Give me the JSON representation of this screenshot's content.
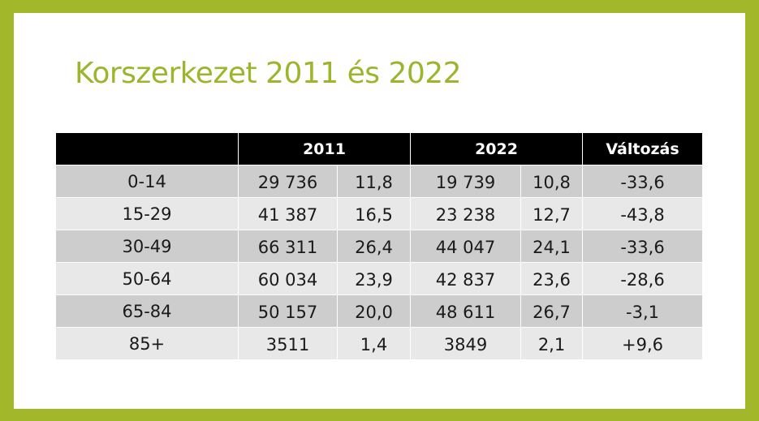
{
  "title": "Korszerkezet 2011 és 2022",
  "table": {
    "headers": [
      "",
      "2011",
      "2022",
      "Változás"
    ],
    "rows": [
      {
        "age": "0-14",
        "n2011": "29 736",
        "p2011": "11,8",
        "n2022": "19 739",
        "p2022": "10,8",
        "change": "-33,6"
      },
      {
        "age": "15-29",
        "n2011": "41 387",
        "p2011": "16,5",
        "n2022": "23 238",
        "p2022": "12,7",
        "change": "-43,8"
      },
      {
        "age": "30-49",
        "n2011": "66 311",
        "p2011": "26,4",
        "n2022": "44 047",
        "p2022": "24,1",
        "change": "-33,6"
      },
      {
        "age": "50-64",
        "n2011": "60 034",
        "p2011": "23,9",
        "n2022": "42 837",
        "p2022": "23,6",
        "change": "-28,6"
      },
      {
        "age": "65-84",
        "n2011": "50 157",
        "p2011": "20,0",
        "n2022": "48 611",
        "p2022": "26,7",
        "change": "-3,1"
      },
      {
        "age": "85+",
        "n2011": "3511",
        "p2011": "1,4",
        "n2022": "3849",
        "p2022": "2,1",
        "change": "+9,6"
      }
    ]
  },
  "colors": {
    "frame": "#a3b72a",
    "title": "#9bb52c",
    "header_bg": "#000000",
    "row_dark": "#cdcdcd",
    "row_light": "#e8e8e8"
  }
}
